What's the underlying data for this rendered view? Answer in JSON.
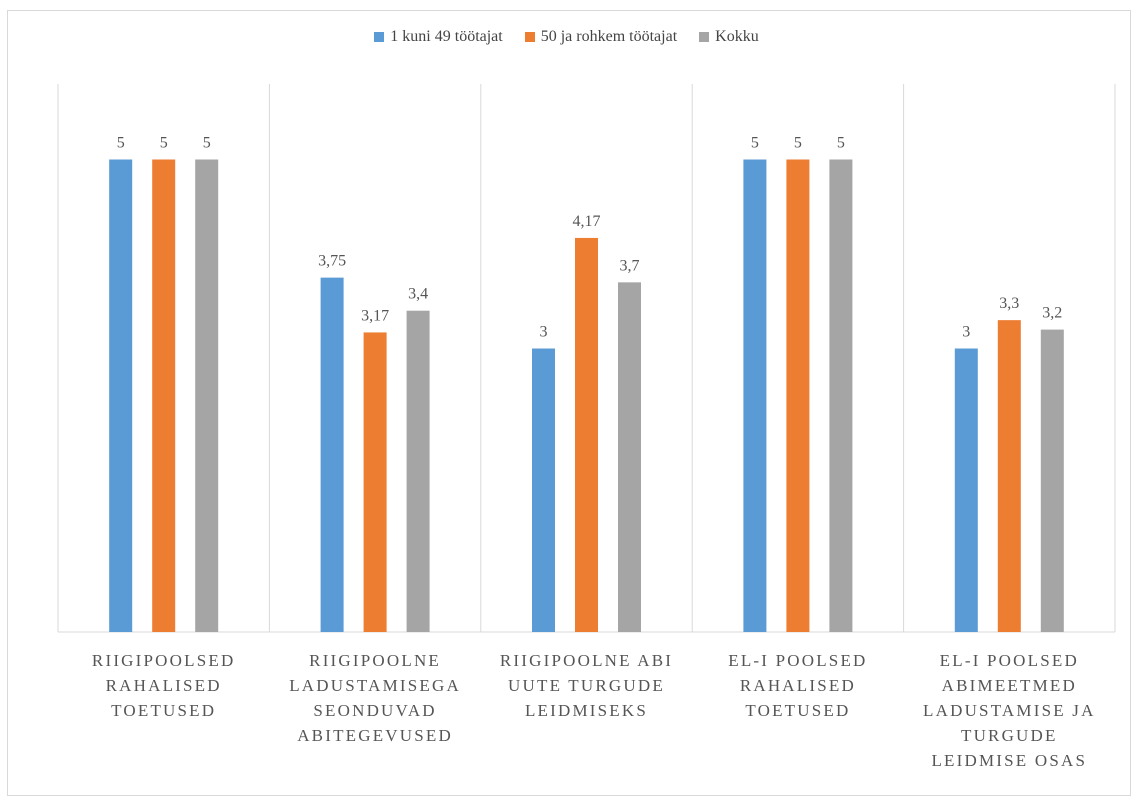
{
  "chart_data": {
    "type": "bar",
    "categories": [
      "RIIGIPOOLSED RAHALISED TOETUSED",
      "RIIGIPOOLNE LADUSTAMISEGA SEONDUVAD ABITEGEVUSED",
      "RIIGIPOOLNE ABI UUTE TURGUDE LEIDMISEKS",
      "EL-I POOLSED RAHALISED TOETUSED",
      "EL-I POOLSED ABIMEETMED LADUSTAMISE JA TURGUDE LEIDMISE OSAS"
    ],
    "category_lines": [
      [
        "RIIGIPOOLSED",
        "RAHALISED",
        "TOETUSED"
      ],
      [
        "RIIGIPOOLNE",
        "LADUSTAMISEGA",
        "SEONDUVAD",
        "ABITEGEVUSED"
      ],
      [
        "RIIGIPOOLNE ABI",
        "UUTE TURGUDE",
        "LEIDMISEKS"
      ],
      [
        "EL-I POOLSED",
        "RAHALISED",
        "TOETUSED"
      ],
      [
        "EL-I POOLSED",
        "ABIMEETMED",
        "LADUSTAMISE JA",
        "TURGUDE",
        "LEIDMISE OSAS"
      ]
    ],
    "series": [
      {
        "name": "1 kuni 49 töötajat",
        "color": "#5b9bd5",
        "values": [
          5,
          3.75,
          3,
          5,
          3
        ],
        "labels": [
          "5",
          "3,75",
          "3",
          "5",
          "3"
        ]
      },
      {
        "name": "50 ja rohkem töötajat",
        "color": "#ed7d31",
        "values": [
          5,
          3.17,
          4.17,
          5,
          3.3
        ],
        "labels": [
          "5",
          "3,17",
          "4,17",
          "5",
          "3,3"
        ]
      },
      {
        "name": "Kokku",
        "color": "#a5a5a5",
        "values": [
          5,
          3.4,
          3.7,
          5,
          3.2
        ],
        "labels": [
          "5",
          "3,4",
          "3,7",
          "5",
          "3,2"
        ]
      }
    ],
    "ylim": [
      0,
      6
    ],
    "legend_position": "top",
    "grid": "vertical category separators"
  }
}
